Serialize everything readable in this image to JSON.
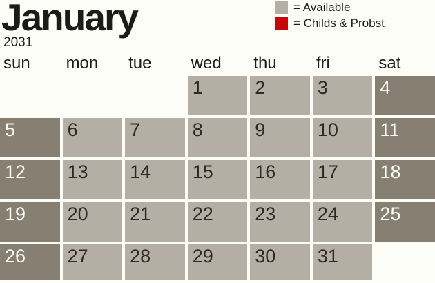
{
  "title": {
    "month": "January",
    "year": "2031"
  },
  "legend": {
    "items": [
      {
        "name": "available",
        "label": "= Available",
        "color": "#b5aea4"
      },
      {
        "name": "childs-probst",
        "label": "= Childs & Probst",
        "color": "#c10708"
      }
    ]
  },
  "calendar": {
    "day_headers": [
      "sun",
      "mon",
      "tue",
      "wed",
      "thu",
      "fri",
      "sat"
    ],
    "weeks": [
      [
        {
          "day": "",
          "state": "empty"
        },
        {
          "day": "",
          "state": "empty"
        },
        {
          "day": "",
          "state": "empty"
        },
        {
          "day": "1",
          "state": "weekday"
        },
        {
          "day": "2",
          "state": "weekday"
        },
        {
          "day": "3",
          "state": "weekday"
        },
        {
          "day": "4",
          "state": "weekend"
        }
      ],
      [
        {
          "day": "5",
          "state": "weekend"
        },
        {
          "day": "6",
          "state": "weekday"
        },
        {
          "day": "7",
          "state": "weekday"
        },
        {
          "day": "8",
          "state": "weekday"
        },
        {
          "day": "9",
          "state": "weekday"
        },
        {
          "day": "10",
          "state": "weekday"
        },
        {
          "day": "11",
          "state": "weekend"
        }
      ],
      [
        {
          "day": "12",
          "state": "weekend"
        },
        {
          "day": "13",
          "state": "weekday"
        },
        {
          "day": "14",
          "state": "weekday"
        },
        {
          "day": "15",
          "state": "weekday"
        },
        {
          "day": "16",
          "state": "weekday"
        },
        {
          "day": "17",
          "state": "weekday"
        },
        {
          "day": "18",
          "state": "weekend"
        }
      ],
      [
        {
          "day": "19",
          "state": "weekend"
        },
        {
          "day": "20",
          "state": "weekday"
        },
        {
          "day": "21",
          "state": "weekday"
        },
        {
          "day": "22",
          "state": "weekday"
        },
        {
          "day": "23",
          "state": "weekday"
        },
        {
          "day": "24",
          "state": "weekday"
        },
        {
          "day": "25",
          "state": "weekend"
        }
      ],
      [
        {
          "day": "26",
          "state": "weekend"
        },
        {
          "day": "27",
          "state": "weekday"
        },
        {
          "day": "28",
          "state": "weekday"
        },
        {
          "day": "29",
          "state": "weekday"
        },
        {
          "day": "30",
          "state": "weekday"
        },
        {
          "day": "31",
          "state": "weekday"
        },
        {
          "day": "",
          "state": "empty"
        }
      ]
    ]
  },
  "colors": {
    "available_weekday": "#b5aea4",
    "available_weekend": "#867f72",
    "booked": "#c10708",
    "background": "#fdfdf8",
    "text": "#1b1b19",
    "day_number_light_text": "#2b2a26",
    "day_number_dark_text": "#fbfcf7"
  }
}
